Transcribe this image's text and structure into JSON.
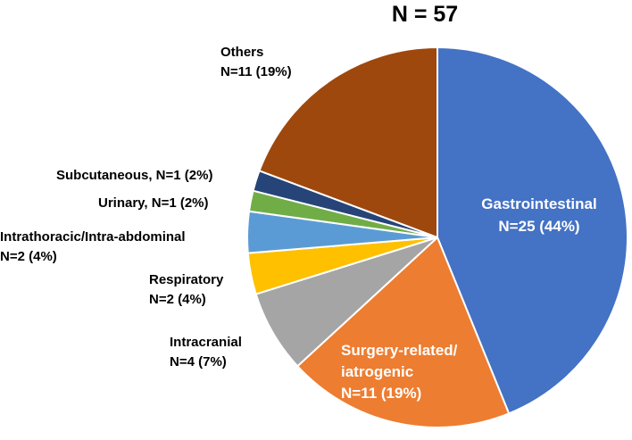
{
  "chart_data": {
    "type": "pie",
    "title": "N = 57",
    "start_angle_deg": 0,
    "direction": "clockwise",
    "slices": [
      {
        "category": "Gastrointestinal",
        "value": 25,
        "percent": 44,
        "label_lines": [
          "Gastrointestinal",
          "N=25 (44%)"
        ],
        "color": "#4472C4",
        "label_inside": true
      },
      {
        "category": "Surgery-related/iatrogenic",
        "value": 11,
        "percent": 19,
        "label_lines": [
          "Surgery-related/",
          "iatrogenic",
          "N=11 (19%)"
        ],
        "color": "#ED7D31",
        "label_inside": true
      },
      {
        "category": "Intracranial",
        "value": 4,
        "percent": 7,
        "label_lines": [
          "Intracranial",
          "N=4 (7%)"
        ],
        "color": "#A5A5A5",
        "label_inside": false
      },
      {
        "category": "Respiratory",
        "value": 2,
        "percent": 4,
        "label_lines": [
          "Respiratory",
          "N=2 (4%)"
        ],
        "color": "#FFC000",
        "label_inside": false
      },
      {
        "category": "Intrathoracic/Intra-abdominal",
        "value": 2,
        "percent": 4,
        "label_lines": [
          "Intrathoracic/Intra-abdominal",
          "N=2 (4%)"
        ],
        "color": "#5B9BD5",
        "label_inside": false
      },
      {
        "category": "Urinary",
        "value": 1,
        "percent": 2,
        "label_lines": [
          "Urinary, N=1 (2%)"
        ],
        "color": "#70AD47",
        "label_inside": false
      },
      {
        "category": "Subcutaneous",
        "value": 1,
        "percent": 2,
        "label_lines": [
          "Subcutaneous, N=1 (2%)"
        ],
        "color": "#264478",
        "label_inside": false
      },
      {
        "category": "Others",
        "value": 11,
        "percent": 19,
        "label_lines": [
          "Others",
          "N=11 (19%)"
        ],
        "color": "#9E480E",
        "label_inside": false
      }
    ]
  }
}
